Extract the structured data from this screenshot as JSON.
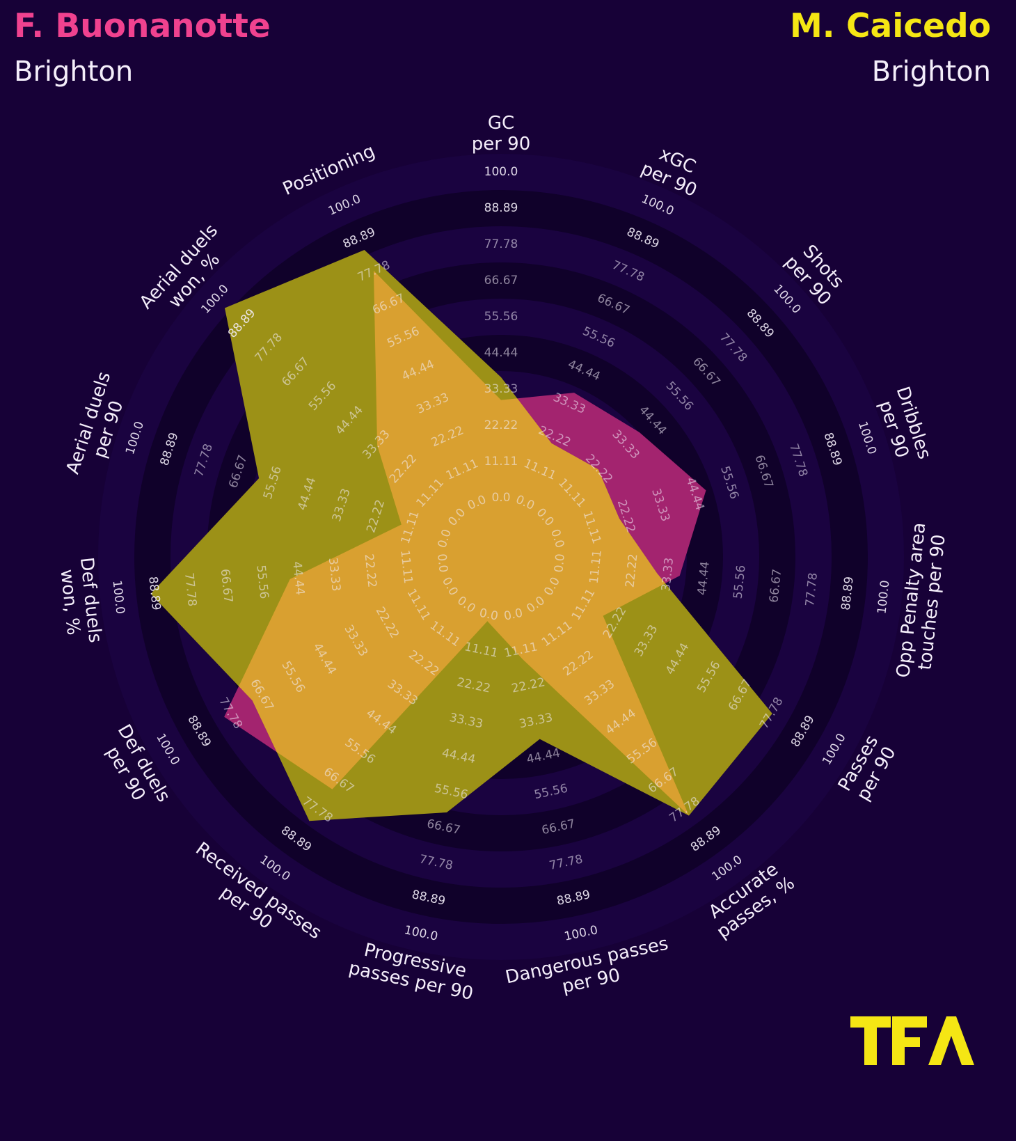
{
  "header": {
    "player1": {
      "name": "F. Buonanotte",
      "team": "Brighton",
      "color": "#f0428f"
    },
    "player2": {
      "name": "M. Caicedo",
      "team": "Brighton",
      "color": "#f5e614"
    }
  },
  "logo": {
    "text": "TFA",
    "color": "#f5e614"
  },
  "colors": {
    "background": "#170137",
    "ring_dark": "#10012a",
    "ring_light": "#1a0340",
    "player1_fill": "#a3246f",
    "player2_fill": "#9c9117",
    "overlap_fill": "#d9a030",
    "ring_label": "#f4eefa"
  },
  "chart_data": {
    "type": "radar",
    "title": "F. Buonanotte vs M. Caicedo",
    "ring_values": [
      "0.0",
      "11.11",
      "22.22",
      "33.33",
      "44.44",
      "55.56",
      "66.67",
      "77.78",
      "88.89",
      "100.0"
    ],
    "range": [
      0,
      100
    ],
    "categories": [
      [
        "GC",
        "per 90"
      ],
      [
        "xGC",
        "per 90"
      ],
      [
        "Shots",
        "per 90"
      ],
      [
        "Dribbles",
        "per 90"
      ],
      [
        "Opp Penalty area",
        "touches per 90"
      ],
      [
        "Passes",
        "per 90"
      ],
      [
        "Accurate",
        "passes, %"
      ],
      [
        "Dangerous passes",
        "per 90"
      ],
      [
        "Progressive",
        "passes per 90"
      ],
      [
        "Received passes",
        "per 90"
      ],
      [
        "Def duels",
        "per 90"
      ],
      [
        "Def duels",
        "won, %"
      ],
      [
        "Aerial duels",
        "per 90"
      ],
      [
        "Aerial duels",
        "won, %"
      ],
      [
        "Positioning"
      ]
    ],
    "series": [
      {
        "name": "F. Buonanotte",
        "team": "Brighton",
        "values": [
          30,
          37,
          39,
          48,
          37,
          18,
          80,
          14,
          2,
          70,
          80,
          47,
          14,
          33,
          78
        ]
      },
      {
        "name": "M. Caicedo",
        "team": "Brighton",
        "values": [
          37,
          20,
          22,
          20,
          30,
          78,
          80,
          39,
          62,
          82,
          70,
          90,
          60,
          96,
          85
        ]
      }
    ],
    "legend": "player names top-left (pink) and top-right (yellow)"
  }
}
